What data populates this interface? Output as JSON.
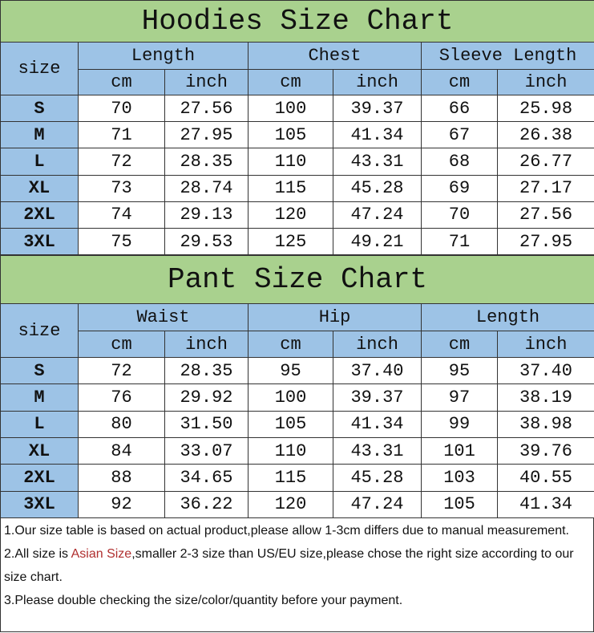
{
  "tables": [
    {
      "title": "Hoodies Size Chart",
      "size_label": "size",
      "groups": [
        "Length",
        "Chest",
        "Sleeve Length"
      ],
      "units": [
        "cm",
        "inch",
        "cm",
        "inch",
        "cm",
        "inch"
      ],
      "rows": [
        [
          "S",
          "70",
          "27.56",
          "100",
          "39.37",
          "66",
          "25.98"
        ],
        [
          "M",
          "71",
          "27.95",
          "105",
          "41.34",
          "67",
          "26.38"
        ],
        [
          "L",
          "72",
          "28.35",
          "110",
          "43.31",
          "68",
          "26.77"
        ],
        [
          "XL",
          "73",
          "28.74",
          "115",
          "45.28",
          "69",
          "27.17"
        ],
        [
          "2XL",
          "74",
          "29.13",
          "120",
          "47.24",
          "70",
          "27.56"
        ],
        [
          "3XL",
          "75",
          "29.53",
          "125",
          "49.21",
          "71",
          "27.95"
        ]
      ]
    },
    {
      "title": "Pant Size Chart",
      "size_label": "size",
      "groups": [
        "Waist",
        "Hip",
        "Length"
      ],
      "units": [
        "cm",
        "inch",
        "cm",
        "inch",
        "cm",
        "inch"
      ],
      "rows": [
        [
          "S",
          "72",
          "28.35",
          "95",
          "37.40",
          "95",
          "37.40"
        ],
        [
          "M",
          "76",
          "29.92",
          "100",
          "39.37",
          "97",
          "38.19"
        ],
        [
          "L",
          "80",
          "31.50",
          "105",
          "41.34",
          "99",
          "38.98"
        ],
        [
          "XL",
          "84",
          "33.07",
          "110",
          "43.31",
          "101",
          "39.76"
        ],
        [
          "2XL",
          "88",
          "34.65",
          "115",
          "45.28",
          "103",
          "40.55"
        ],
        [
          "3XL",
          "92",
          "36.22",
          "120",
          "47.24",
          "105",
          "41.34"
        ]
      ]
    }
  ],
  "notes": {
    "n1": "1.Our size table is based on actual product,please allow 1-3cm differs due to manual measurement.",
    "n2_pre": "2.All size is ",
    "n2_red": "Asian Size",
    "n2_post": ",smaller 2-3 size than US/EU size,please chose the right size according to our size chart.",
    "n3": "3.Please double checking the size/color/quantity before your payment."
  },
  "colors": {
    "title_bg": "#a9d18e",
    "header_bg": "#9dc3e6",
    "highlight": "#b03030"
  }
}
